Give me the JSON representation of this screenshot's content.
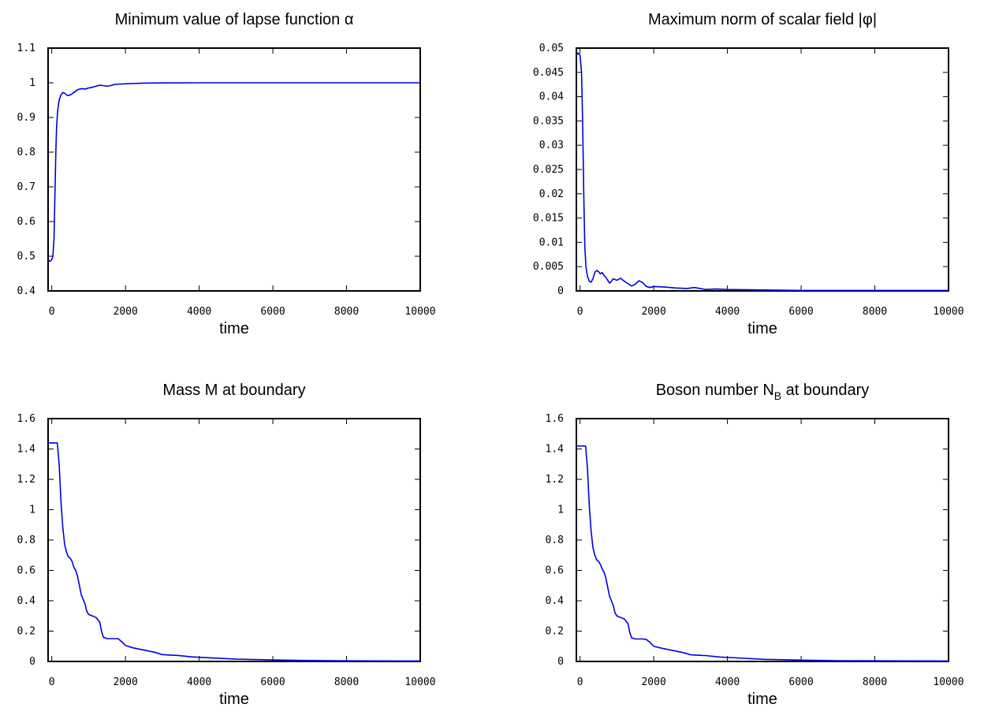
{
  "chart_data": [
    {
      "type": "line",
      "title": "Minimum value of lapse function α",
      "title_sub": "",
      "title_after": "",
      "xlabel": "time",
      "xlim": [
        -100,
        10000
      ],
      "ylim": [
        0.4,
        1.1
      ],
      "xticks": [
        "0",
        "2000",
        "4000",
        "6000",
        "8000",
        "10000"
      ],
      "xtick_values": [
        0,
        2000,
        4000,
        6000,
        8000,
        10000
      ],
      "yticks": [
        "0.4",
        "0.5",
        "0.6",
        "0.7",
        "0.8",
        "0.9",
        "1",
        "1.1"
      ],
      "ytick_values": [
        0.4,
        0.5,
        0.6,
        0.7,
        0.8,
        0.9,
        1.0,
        1.1
      ],
      "legend": "none",
      "grid": false,
      "color": "#0000e0",
      "series": [
        {
          "x": [
            -100,
            -50,
            0,
            30,
            60,
            90,
            110,
            130,
            160,
            200,
            250,
            300,
            350,
            400,
            450,
            500,
            550,
            600,
            650,
            700,
            800,
            900,
            1000,
            1100,
            1200,
            1300,
            1400,
            1500,
            1600,
            1700,
            1800,
            2000,
            2200,
            2500,
            3000,
            4000,
            5000,
            6000,
            8000,
            10000
          ],
          "y": [
            0.49,
            0.485,
            0.49,
            0.5,
            0.55,
            0.7,
            0.8,
            0.87,
            0.92,
            0.95,
            0.965,
            0.972,
            0.97,
            0.965,
            0.963,
            0.965,
            0.968,
            0.972,
            0.976,
            0.98,
            0.983,
            0.982,
            0.985,
            0.987,
            0.99,
            0.993,
            0.992,
            0.99,
            0.992,
            0.995,
            0.996,
            0.997,
            0.998,
            0.999,
            0.9995,
            1.0,
            1.0,
            1.0,
            1.0,
            1.0
          ]
        }
      ]
    },
    {
      "type": "line",
      "title": "Maximum norm of scalar field |φ|",
      "title_sub": "",
      "title_after": "",
      "xlabel": "time",
      "xlim": [
        -100,
        10000
      ],
      "ylim": [
        0,
        0.05
      ],
      "xticks": [
        "0",
        "2000",
        "4000",
        "6000",
        "8000",
        "10000"
      ],
      "xtick_values": [
        0,
        2000,
        4000,
        6000,
        8000,
        10000
      ],
      "yticks": [
        "0",
        "0.005",
        "0.01",
        "0.015",
        "0.02",
        "0.025",
        "0.03",
        "0.035",
        "0.04",
        "0.045",
        "0.05"
      ],
      "ytick_values": [
        0,
        0.005,
        0.01,
        0.015,
        0.02,
        0.025,
        0.03,
        0.035,
        0.04,
        0.045,
        0.05
      ],
      "legend": "none",
      "grid": false,
      "color": "#0000e0",
      "series": [
        {
          "x": [
            -100,
            -50,
            0,
            40,
            70,
            100,
            130,
            160,
            200,
            250,
            300,
            350,
            400,
            450,
            500,
            550,
            600,
            650,
            700,
            750,
            800,
            850,
            900,
            1000,
            1100,
            1200,
            1300,
            1400,
            1500,
            1600,
            1700,
            1800,
            1900,
            2000,
            2300,
            2600,
            2900,
            3100,
            3400,
            3700,
            4000,
            5000,
            6000,
            7000,
            8000,
            9000,
            10000
          ],
          "y": [
            0.0485,
            0.049,
            0.0485,
            0.045,
            0.035,
            0.02,
            0.009,
            0.005,
            0.003,
            0.002,
            0.0018,
            0.0025,
            0.0038,
            0.0042,
            0.004,
            0.0035,
            0.0038,
            0.0032,
            0.0028,
            0.0022,
            0.0016,
            0.002,
            0.0025,
            0.0022,
            0.0026,
            0.002,
            0.0015,
            0.001,
            0.0014,
            0.0021,
            0.0017,
            0.0009,
            0.0007,
            0.0009,
            0.0008,
            0.0006,
            0.0005,
            0.0007,
            0.0003,
            0.0004,
            0.0003,
            0.0002,
            0.0001,
            0.0001,
            0.0001,
            0.0001,
            0.0001
          ]
        }
      ]
    },
    {
      "type": "line",
      "title": "Mass M at boundary",
      "title_sub": "",
      "title_after": "",
      "xlabel": "time",
      "xlim": [
        -100,
        10000
      ],
      "ylim": [
        0,
        1.6
      ],
      "xticks": [
        "0",
        "2000",
        "4000",
        "6000",
        "8000",
        "10000"
      ],
      "xtick_values": [
        0,
        2000,
        4000,
        6000,
        8000,
        10000
      ],
      "yticks": [
        "0",
        "0.2",
        "0.4",
        "0.6",
        "0.8",
        "1",
        "1.2",
        "1.4",
        "1.6"
      ],
      "ytick_values": [
        0,
        0.2,
        0.4,
        0.6,
        0.8,
        1.0,
        1.2,
        1.4,
        1.6
      ],
      "legend": "none",
      "grid": false,
      "color": "#0000e0",
      "series": [
        {
          "x": [
            -100,
            0,
            100,
            150,
            200,
            250,
            300,
            350,
            400,
            450,
            500,
            550,
            600,
            650,
            700,
            750,
            800,
            850,
            900,
            950,
            1000,
            1100,
            1200,
            1300,
            1350,
            1400,
            1500,
            1600,
            1700,
            1800,
            1900,
            2000,
            2200,
            2500,
            2800,
            3000,
            3200,
            3400,
            3800,
            4200,
            5000,
            6000,
            7000,
            8000,
            10000
          ],
          "y": [
            1.44,
            1.44,
            1.44,
            1.44,
            1.3,
            1.05,
            0.88,
            0.77,
            0.72,
            0.69,
            0.68,
            0.66,
            0.62,
            0.6,
            0.56,
            0.5,
            0.44,
            0.41,
            0.38,
            0.33,
            0.31,
            0.3,
            0.29,
            0.26,
            0.2,
            0.16,
            0.15,
            0.15,
            0.15,
            0.15,
            0.13,
            0.105,
            0.09,
            0.075,
            0.06,
            0.045,
            0.042,
            0.04,
            0.03,
            0.025,
            0.015,
            0.01,
            0.006,
            0.004,
            0.003
          ]
        }
      ]
    },
    {
      "type": "line",
      "title": "Boson number N",
      "title_sub": "B",
      "title_after": " at boundary",
      "xlabel": "time",
      "xlim": [
        -100,
        10000
      ],
      "ylim": [
        0,
        1.6
      ],
      "xticks": [
        "0",
        "2000",
        "4000",
        "6000",
        "8000",
        "10000"
      ],
      "xtick_values": [
        0,
        2000,
        4000,
        6000,
        8000,
        10000
      ],
      "yticks": [
        "0",
        "0.2",
        "0.4",
        "0.6",
        "0.8",
        "1",
        "1.2",
        "1.4",
        "1.6"
      ],
      "ytick_values": [
        0,
        0.2,
        0.4,
        0.6,
        0.8,
        1.0,
        1.2,
        1.4,
        1.6
      ],
      "legend": "none",
      "grid": false,
      "color": "#0000e0",
      "series": [
        {
          "x": [
            -100,
            0,
            100,
            150,
            200,
            250,
            300,
            350,
            400,
            450,
            500,
            550,
            600,
            650,
            700,
            750,
            800,
            850,
            900,
            950,
            1000,
            1100,
            1200,
            1300,
            1350,
            1400,
            1500,
            1600,
            1700,
            1800,
            1900,
            2000,
            2200,
            2500,
            2800,
            3000,
            3200,
            3400,
            3800,
            4200,
            5000,
            6000,
            7000,
            8000,
            10000
          ],
          "y": [
            1.42,
            1.42,
            1.42,
            1.42,
            1.28,
            1.03,
            0.86,
            0.75,
            0.7,
            0.67,
            0.66,
            0.64,
            0.61,
            0.59,
            0.55,
            0.49,
            0.43,
            0.4,
            0.37,
            0.32,
            0.3,
            0.29,
            0.28,
            0.25,
            0.19,
            0.155,
            0.148,
            0.148,
            0.148,
            0.145,
            0.125,
            0.1,
            0.088,
            0.073,
            0.058,
            0.044,
            0.041,
            0.039,
            0.029,
            0.024,
            0.014,
            0.009,
            0.005,
            0.004,
            0.003
          ]
        }
      ]
    }
  ]
}
